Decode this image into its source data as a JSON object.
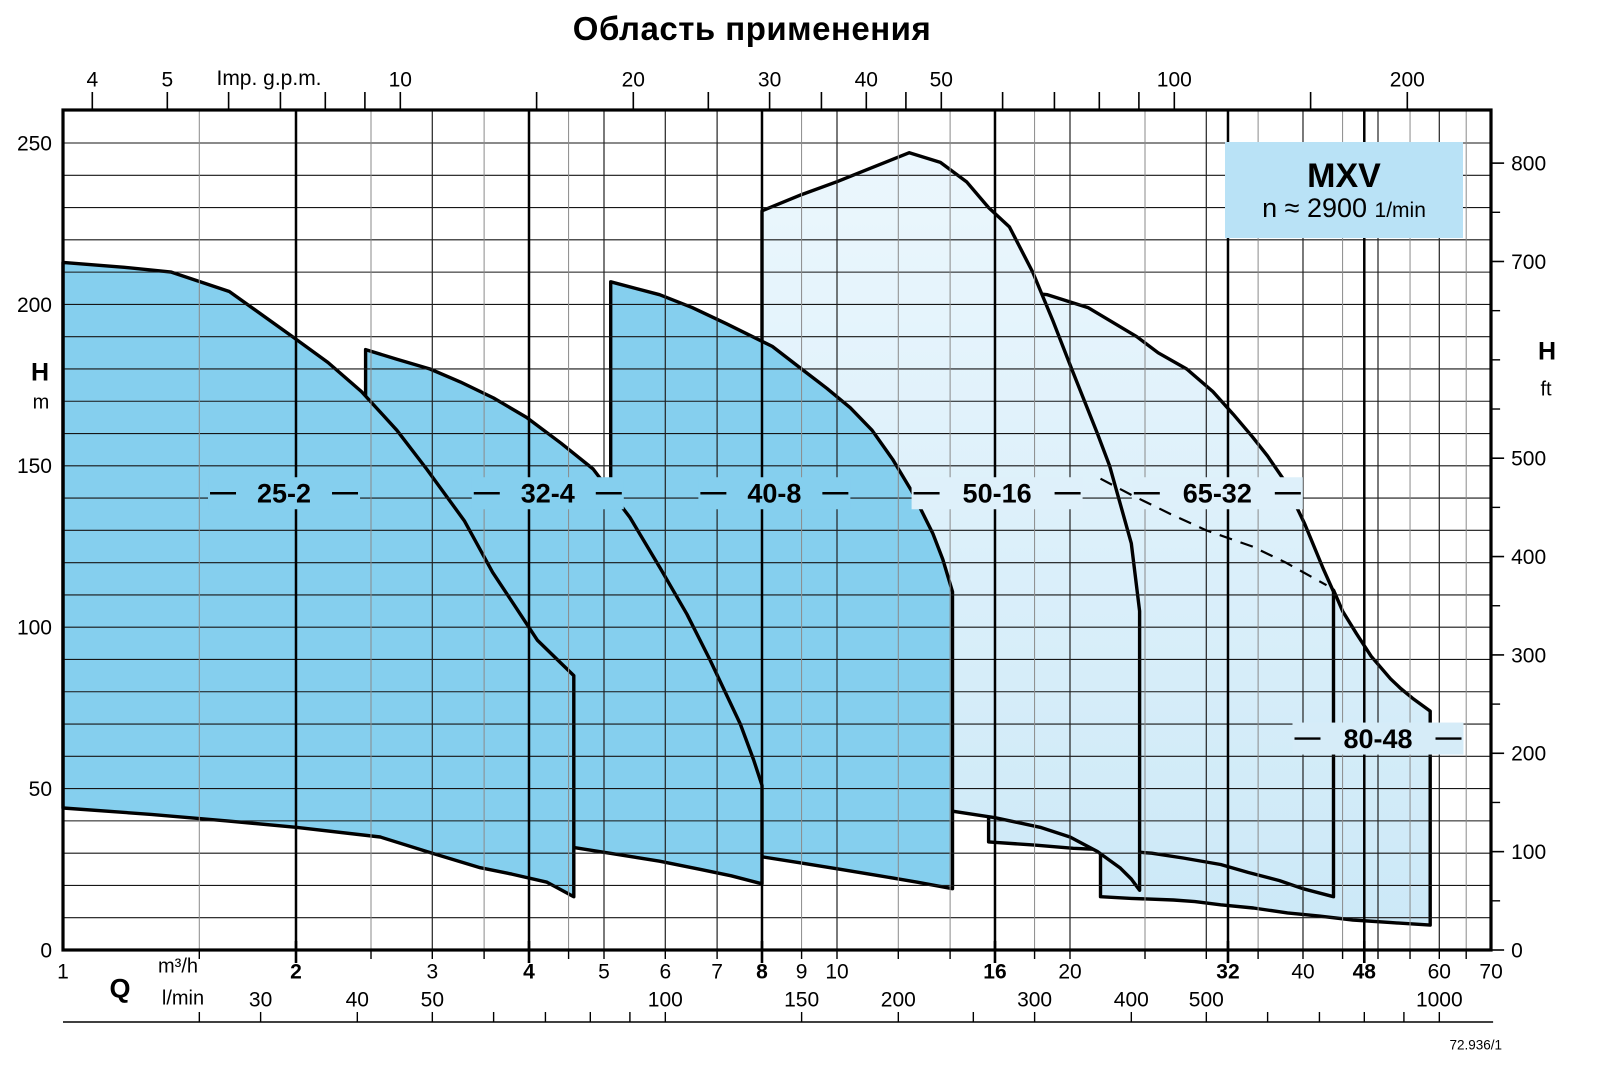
{
  "page": {
    "title": "Область применения",
    "doc_number": "72.936/1"
  },
  "legend": {
    "model": "MXV",
    "speed": "n ≈ 2900",
    "speed_unit": "1/min"
  },
  "axes": {
    "top": {
      "unit_label": "Imp. g.p.m.",
      "ticks": [
        4,
        5,
        6,
        7,
        8,
        9,
        10,
        15,
        20,
        25,
        30,
        35,
        40,
        45,
        50,
        60,
        70,
        80,
        90,
        100,
        150,
        200
      ],
      "labeled_ticks": [
        4,
        5,
        10,
        20,
        30,
        40,
        50,
        100,
        200
      ]
    },
    "left": {
      "quantity": "H",
      "unit": "m",
      "labeled_ticks": [
        0,
        50,
        100,
        150,
        200,
        250
      ]
    },
    "right": {
      "quantity": "H",
      "unit": "ft",
      "labeled_ticks": [
        0,
        100,
        200,
        300,
        400,
        500,
        700,
        800
      ],
      "minor_ticks": [
        50,
        150,
        250,
        350,
        450,
        550,
        600,
        650,
        750
      ]
    },
    "bottom_flow": {
      "quantity": "Q",
      "unit": "m³/h",
      "labels": [
        {
          "v": 1,
          "bold": false
        },
        {
          "v": 2,
          "bold": true
        },
        {
          "v": 3,
          "bold": false
        },
        {
          "v": 4,
          "bold": true
        },
        {
          "v": 5,
          "bold": false
        },
        {
          "v": 6,
          "bold": false
        },
        {
          "v": 7,
          "bold": false
        },
        {
          "v": 8,
          "bold": true
        },
        {
          "v": 9,
          "bold": false
        },
        {
          "v": 10,
          "bold": false
        },
        {
          "v": 16,
          "bold": true
        },
        {
          "v": 20,
          "bold": false
        },
        {
          "v": 32,
          "bold": true
        },
        {
          "v": 40,
          "bold": false
        },
        {
          "v": 48,
          "bold": true
        },
        {
          "v": 60,
          "bold": false
        },
        {
          "v": 70,
          "bold": false
        }
      ]
    },
    "bottom_lmin": {
      "unit": "l/min",
      "labels": [
        30,
        40,
        50,
        100,
        150,
        200,
        300,
        400,
        500,
        1000
      ],
      "ticks": [
        25,
        30,
        40,
        50,
        60,
        70,
        80,
        90,
        100,
        150,
        200,
        250,
        300,
        400,
        500,
        600,
        700,
        800,
        900,
        1000
      ]
    }
  },
  "chart_data": {
    "type": "area",
    "title": "Область применения",
    "x_axis": {
      "label": "Q",
      "units": [
        "m³/h",
        "l/min",
        "Imp. g.p.m."
      ],
      "scale": "log",
      "range_m3h": [
        1,
        70
      ]
    },
    "y_axis": {
      "label": "H",
      "units": [
        "m",
        "ft"
      ],
      "scale": "linear",
      "range_m": [
        0,
        260
      ],
      "range_ft": [
        0,
        853
      ]
    },
    "gridlines": {
      "h_step_m": 10,
      "v_minor": [
        1.5,
        2.5,
        3.5,
        4.5,
        9,
        12,
        14,
        18,
        25,
        35,
        45,
        55,
        65
      ],
      "v_major": [
        3,
        5,
        6,
        7,
        10,
        20,
        30,
        40,
        50,
        60
      ],
      "v_bold": [
        2,
        4,
        8,
        16,
        32,
        48
      ]
    },
    "colors": {
      "dark_fill": "#85cfee",
      "light_fill_top": "#ecf7fd",
      "light_fill_bottom": "#cbe8f7",
      "legend_bg": "#b9e2f6",
      "outline": "#000000"
    },
    "series": [
      {
        "name": "25-2",
        "palette": "dark",
        "q_range_m3h": [
          1.0,
          4.57
        ],
        "h_range_m": [
          16.5,
          213
        ],
        "label_pos": [
          1.93,
          141.5
        ],
        "label_bg": "#85cfee",
        "outline": [
          [
            1.0,
            213
          ],
          [
            1.2,
            211.5
          ],
          [
            1.38,
            210
          ],
          [
            1.64,
            204
          ],
          [
            1.98,
            190
          ],
          [
            2.2,
            182
          ],
          [
            2.43,
            173
          ],
          [
            2.7,
            161
          ],
          [
            2.95,
            149
          ],
          [
            3.3,
            133
          ],
          [
            3.59,
            117
          ],
          [
            3.85,
            106
          ],
          [
            4.1,
            96
          ],
          [
            4.35,
            90
          ],
          [
            4.57,
            85
          ],
          [
            4.57,
            16.5
          ],
          [
            4.22,
            21
          ],
          [
            3.8,
            23.5
          ],
          [
            3.46,
            25.5
          ],
          [
            3.0,
            30
          ],
          [
            2.57,
            35
          ],
          [
            2.0,
            38
          ],
          [
            1.63,
            40
          ],
          [
            1.3,
            42
          ],
          [
            1.0,
            44
          ]
        ]
      },
      {
        "name": "32-4",
        "palette": "dark",
        "q_range_m3h": [
          2.46,
          8.0
        ],
        "h_range_m": [
          20.5,
          186
        ],
        "label_pos": [
          4.23,
          141.5
        ],
        "label_bg": "#85cfee",
        "outline": [
          [
            2.46,
            186
          ],
          [
            2.7,
            183
          ],
          [
            2.98,
            180
          ],
          [
            3.26,
            176
          ],
          [
            3.6,
            171
          ],
          [
            3.97,
            165
          ],
          [
            4.4,
            157
          ],
          [
            4.84,
            149
          ],
          [
            5.4,
            134
          ],
          [
            5.92,
            118
          ],
          [
            6.4,
            104
          ],
          [
            6.85,
            90
          ],
          [
            7.2,
            79
          ],
          [
            7.5,
            70
          ],
          [
            7.8,
            59
          ],
          [
            8.0,
            51
          ],
          [
            8.0,
            20.5
          ],
          [
            7.3,
            23
          ],
          [
            6.65,
            25
          ],
          [
            5.9,
            27.5
          ],
          [
            5.24,
            29.5
          ],
          [
            4.5,
            32
          ],
          [
            3.89,
            34
          ],
          [
            3.4,
            35.5
          ],
          [
            2.98,
            37
          ],
          [
            2.46,
            39
          ]
        ]
      },
      {
        "name": "40-8",
        "palette": "dark",
        "q_range_m3h": [
          5.1,
          14.1
        ],
        "h_range_m": [
          19,
          207
        ],
        "label_pos": [
          8.3,
          141.5
        ],
        "label_bg": "#85cfee",
        "outline": [
          [
            5.1,
            207
          ],
          [
            5.9,
            203
          ],
          [
            6.5,
            199
          ],
          [
            7.2,
            194
          ],
          [
            8.25,
            187
          ],
          [
            9.0,
            180
          ],
          [
            9.7,
            174
          ],
          [
            10.4,
            168
          ],
          [
            11.1,
            161
          ],
          [
            11.8,
            152
          ],
          [
            12.5,
            142
          ],
          [
            13.3,
            129
          ],
          [
            13.7,
            121
          ],
          [
            14.1,
            111
          ],
          [
            14.1,
            19
          ],
          [
            12.7,
            21
          ],
          [
            11.35,
            23
          ],
          [
            10.1,
            25
          ],
          [
            8.96,
            27
          ],
          [
            7.7,
            29.5
          ],
          [
            6.64,
            31.5
          ],
          [
            5.8,
            33.5
          ],
          [
            5.1,
            35
          ]
        ]
      },
      {
        "name": "50-16",
        "palette": "light",
        "q_range_m3h": [
          8.0,
          24.6
        ],
        "h_range_m": [
          18.5,
          247
        ],
        "label_pos": [
          16.1,
          141.5
        ],
        "label_bg": "#def0fa",
        "outline": [
          [
            8.0,
            229
          ],
          [
            9.0,
            234
          ],
          [
            10.0,
            238
          ],
          [
            11.0,
            242
          ],
          [
            12.4,
            247
          ],
          [
            13.6,
            244
          ],
          [
            14.7,
            238
          ],
          [
            15.7,
            230
          ],
          [
            16.7,
            224
          ],
          [
            17.9,
            210
          ],
          [
            19.0,
            195
          ],
          [
            20.1,
            180
          ],
          [
            21.7,
            160
          ],
          [
            22.5,
            150
          ],
          [
            24.0,
            126
          ],
          [
            24.6,
            105
          ],
          [
            24.6,
            18.5
          ],
          [
            24.0,
            22
          ],
          [
            23.2,
            25.5
          ],
          [
            21.7,
            30.5
          ],
          [
            20.0,
            35
          ],
          [
            18.3,
            38
          ],
          [
            16.0,
            41
          ],
          [
            14.1,
            43
          ],
          [
            12.0,
            44
          ],
          [
            10.4,
            44.5
          ],
          [
            9.0,
            45.5
          ],
          [
            8.0,
            46.5
          ]
        ]
      },
      {
        "name": "65-32",
        "palette": "light",
        "q_range_m3h": [
          15.7,
          43.8
        ],
        "h_range_m": [
          16.5,
          205
        ],
        "label_pos": [
          31.0,
          141.5
        ],
        "label_bg": "#def0fa",
        "outline": [
          [
            15.7,
            205
          ],
          [
            17.0,
            204
          ],
          [
            18.7,
            203
          ],
          [
            21.1,
            199
          ],
          [
            24.4,
            190
          ],
          [
            26.0,
            185
          ],
          [
            28.3,
            180
          ],
          [
            30.6,
            173
          ],
          [
            32.5,
            166
          ],
          [
            34.4,
            159
          ],
          [
            36.0,
            153
          ],
          [
            37.7,
            146
          ],
          [
            40.2,
            132
          ],
          [
            42.5,
            118
          ],
          [
            43.8,
            111
          ],
          [
            43.8,
            16.5
          ],
          [
            40.0,
            19
          ],
          [
            37.3,
            21.5
          ],
          [
            34.0,
            24
          ],
          [
            31.3,
            26.5
          ],
          [
            28.0,
            28.5
          ],
          [
            25.5,
            30
          ],
          [
            22.5,
            31
          ],
          [
            20.2,
            31.5
          ],
          [
            18.0,
            32.5
          ],
          [
            15.7,
            33.5
          ]
        ]
      },
      {
        "name": "80-48",
        "palette": "light",
        "q_range_m3h": [
          21.9,
          58.4
        ],
        "h_range_m": [
          7.7,
          146
        ],
        "label_pos": [
          50.0,
          65.5
        ],
        "label_bg": "#d6ecf8",
        "outline": [
          [
            21.9,
            146
          ],
          [
            24.0,
            141
          ],
          [
            27.0,
            135
          ],
          [
            30.0,
            130
          ],
          [
            34.4,
            125
          ],
          [
            38.0,
            120
          ],
          [
            42.9,
            113
          ],
          [
            43.8,
            111.5
          ],
          [
            45.0,
            105
          ],
          [
            46.9,
            98
          ],
          [
            49.0,
            91
          ],
          [
            51.9,
            84
          ],
          [
            53.5,
            81
          ],
          [
            55.4,
            78
          ],
          [
            58.4,
            74
          ],
          [
            58.4,
            7.7
          ],
          [
            52.0,
            8.5
          ],
          [
            46.4,
            9.3
          ],
          [
            42.0,
            10.5
          ],
          [
            38.2,
            11.5
          ],
          [
            34.5,
            13
          ],
          [
            31.3,
            14
          ],
          [
            29.0,
            15
          ],
          [
            27.2,
            15.5
          ],
          [
            24.0,
            16
          ],
          [
            21.9,
            16.5
          ]
        ]
      }
    ],
    "hidden_boundary_dashed": [
      [
        21.9,
        146
      ],
      [
        24,
        141
      ],
      [
        27,
        135
      ],
      [
        30,
        130
      ],
      [
        34.4,
        125
      ],
      [
        38,
        120
      ],
      [
        42.9,
        113
      ]
    ]
  }
}
